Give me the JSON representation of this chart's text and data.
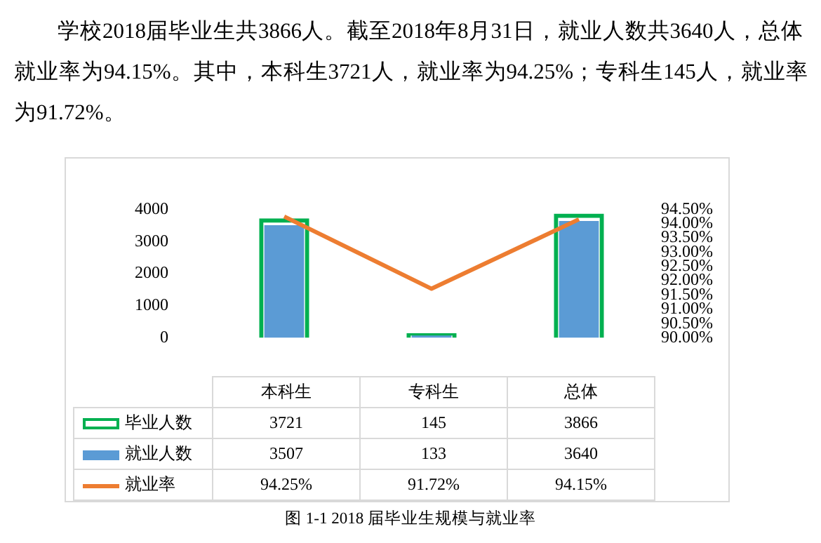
{
  "chart_data": {
    "type": "bar",
    "title": "图 1-1   2018 届毕业生规模与就业率",
    "annotations": [
      "学校2018届毕业生共3866人。截至2018年8月31日，就业人数共3640人，总体就业率为94.15%。其中，本科生3721人，就业率为94.25%；专科生145人，就业率为91.72%。"
    ],
    "categories": [
      "本科生",
      "专科生",
      "总体"
    ],
    "series": [
      {
        "name": "毕业人数",
        "color": "#00b050",
        "values": [
          3721,
          145,
          3866
        ],
        "value_labels": [
          "3721",
          "145",
          "3866"
        ]
      },
      {
        "name": "就业人数",
        "color": "#5b9bd5",
        "values": [
          3507,
          133,
          3640
        ],
        "value_labels": [
          "3507",
          "133",
          "3640"
        ]
      },
      {
        "name": "就业率",
        "type": "line",
        "axis": "y2",
        "color": "#ed7d31",
        "values": [
          94.25,
          91.72,
          94.15
        ],
        "value_labels": [
          "94.25%",
          "91.72%",
          "94.15%"
        ]
      }
    ],
    "ylim": [
      0,
      4000
    ],
    "yticks": [
      0,
      1000,
      2000,
      3000,
      4000
    ],
    "y2lim": [
      90,
      94.5
    ],
    "y2ticks": [
      {
        "value": 90,
        "label": "90.00%"
      },
      {
        "value": 90.5,
        "label": "90.50%"
      },
      {
        "value": 91,
        "label": "91.00%"
      },
      {
        "value": 91.5,
        "label": "91.50%"
      },
      {
        "value": 92,
        "label": "92.00%"
      },
      {
        "value": 92.5,
        "label": "92.50%"
      },
      {
        "value": 93,
        "label": "93.00%"
      },
      {
        "value": 93.5,
        "label": "93.50%"
      },
      {
        "value": 94,
        "label": "94.00%"
      },
      {
        "value": 94.5,
        "label": "94.50%"
      }
    ],
    "grid": false,
    "legend": "bottom left",
    "marker": "none",
    "line_style": "solid"
  }
}
